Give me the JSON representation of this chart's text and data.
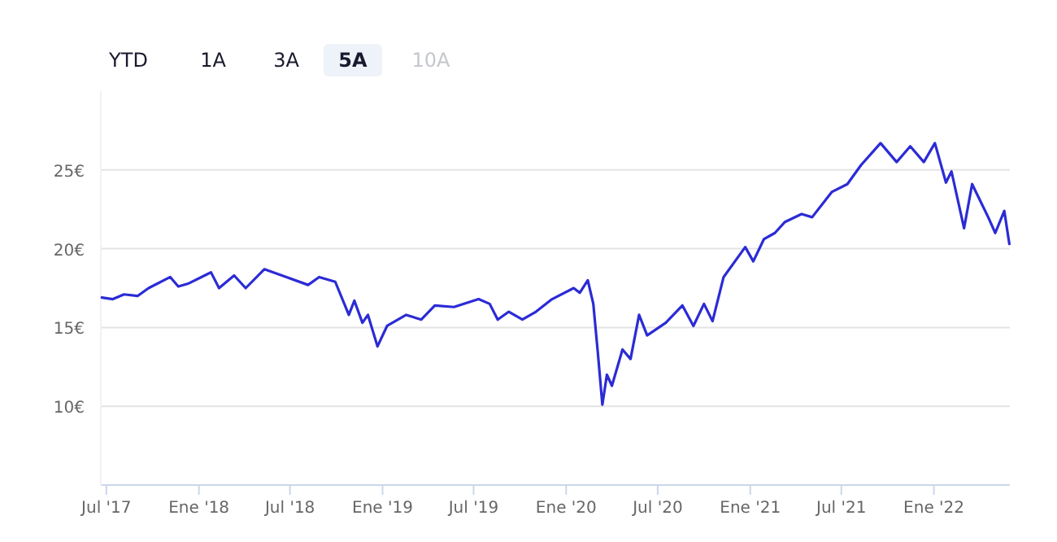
{
  "chart_data": {
    "type": "line",
    "annotations": [
      "YTD",
      "1A",
      "3A",
      "5A",
      "10A"
    ],
    "x": [
      "2017-06-22",
      "2017-07-14",
      "2017-08-05",
      "2017-09-01",
      "2017-09-23",
      "2017-11-05",
      "2017-11-21",
      "2017-12-12",
      "2018-01-25",
      "2018-02-10",
      "2018-03-12",
      "2018-04-04",
      "2018-05-11",
      "2018-06-24",
      "2018-08-06",
      "2018-08-28",
      "2018-09-29",
      "2018-10-26",
      "2018-11-06",
      "2018-11-22",
      "2018-12-03",
      "2018-12-22",
      "2019-01-10",
      "2019-02-17",
      "2019-03-19",
      "2019-04-15",
      "2019-05-23",
      "2019-07-11",
      "2019-08-02",
      "2019-08-18",
      "2019-09-09",
      "2019-10-06",
      "2019-11-02",
      "2019-12-04",
      "2020-01-16",
      "2020-01-28",
      "2020-02-13",
      "2020-02-24",
      "2020-03-04",
      "2020-03-13",
      "2020-03-22",
      "2020-04-01",
      "2020-04-22",
      "2020-05-08",
      "2020-05-25",
      "2020-06-10",
      "2020-07-17",
      "2020-08-19",
      "2020-09-10",
      "2020-10-01",
      "2020-10-18",
      "2020-11-09",
      "2020-12-22",
      "2021-01-07",
      "2021-01-28",
      "2021-02-19",
      "2021-03-11",
      "2021-04-13",
      "2021-05-04",
      "2021-06-12",
      "2021-07-13",
      "2021-08-09",
      "2021-09-17",
      "2021-10-19",
      "2021-11-15",
      "2021-12-12",
      "2022-01-03",
      "2022-01-25",
      "2022-02-05",
      "2022-03-02",
      "2022-03-18",
      "2022-04-19",
      "2022-05-03",
      "2022-05-21",
      "2022-05-31"
    ],
    "series": [
      {
        "color": "#2b2bd6",
        "values": [
          16.9,
          16.8,
          17.1,
          17.0,
          17.5,
          18.2,
          17.6,
          17.8,
          18.5,
          17.5,
          18.3,
          17.5,
          18.7,
          18.2,
          17.7,
          18.2,
          17.9,
          15.8,
          16.7,
          15.3,
          15.8,
          13.8,
          15.1,
          15.8,
          15.5,
          16.4,
          16.3,
          16.8,
          16.5,
          15.5,
          16.0,
          15.5,
          16.0,
          16.8,
          17.5,
          17.2,
          18.0,
          16.5,
          13.4,
          10.1,
          12.0,
          11.3,
          13.6,
          13.0,
          15.8,
          14.5,
          15.3,
          16.4,
          15.1,
          16.5,
          15.4,
          18.2,
          20.1,
          19.2,
          20.6,
          21.0,
          21.7,
          22.2,
          22.0,
          23.6,
          24.1,
          25.3,
          26.7,
          25.5,
          26.5,
          25.5,
          26.7,
          24.2,
          24.9,
          21.3,
          24.1,
          22.0,
          21.0,
          22.4,
          20.3
        ]
      }
    ],
    "xlim": [
      "2017-06-20",
      "2022-06-01"
    ],
    "xticks": [
      {
        "value": "2017-07-01",
        "label": "Jul '17"
      },
      {
        "value": "2018-01-01",
        "label": "Ene '18"
      },
      {
        "value": "2018-07-01",
        "label": "Jul '18"
      },
      {
        "value": "2019-01-01",
        "label": "Ene '19"
      },
      {
        "value": "2019-07-01",
        "label": "Jul '19"
      },
      {
        "value": "2020-01-01",
        "label": "Ene '20"
      },
      {
        "value": "2020-07-01",
        "label": "Jul '20"
      },
      {
        "value": "2021-01-01",
        "label": "Ene '21"
      },
      {
        "value": "2021-07-01",
        "label": "Jul '21"
      },
      {
        "value": "2022-01-01",
        "label": "Ene '22"
      }
    ],
    "yticks": [
      {
        "value": 10,
        "label": "10€"
      },
      {
        "value": 15,
        "label": "15€"
      },
      {
        "value": 20,
        "label": "20€"
      },
      {
        "value": 25,
        "label": "25€"
      }
    ],
    "ylim": [
      5,
      30
    ],
    "grid": "y",
    "line_style": "solid"
  }
}
